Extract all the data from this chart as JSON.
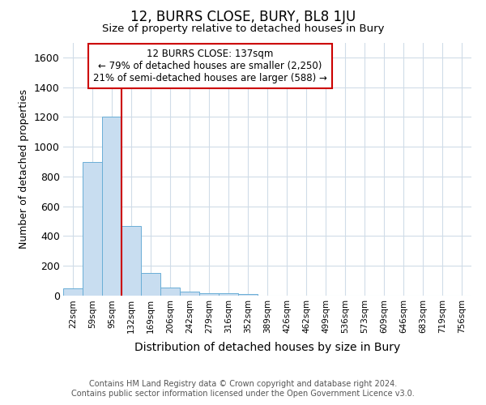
{
  "title": "12, BURRS CLOSE, BURY, BL8 1JU",
  "subtitle": "Size of property relative to detached houses in Bury",
  "xlabel": "Distribution of detached houses by size in Bury",
  "ylabel": "Number of detached properties",
  "footer_line1": "Contains HM Land Registry data © Crown copyright and database right 2024.",
  "footer_line2": "Contains public sector information licensed under the Open Government Licence v3.0.",
  "bar_color": "#c8ddf0",
  "bar_edge_color": "#6aaed6",
  "annotation_text": "12 BURRS CLOSE: 137sqm\n← 79% of detached houses are smaller (2,250)\n21% of semi-detached houses are larger (588) →",
  "annotation_box_color": "white",
  "annotation_box_edge_color": "#cc0000",
  "vline_color": "#cc0000",
  "bins": [
    "22sqm",
    "59sqm",
    "95sqm",
    "132sqm",
    "169sqm",
    "206sqm",
    "242sqm",
    "279sqm",
    "316sqm",
    "352sqm",
    "389sqm",
    "426sqm",
    "462sqm",
    "499sqm",
    "536sqm",
    "573sqm",
    "609sqm",
    "646sqm",
    "683sqm",
    "719sqm",
    "756sqm"
  ],
  "values": [
    50,
    900,
    1200,
    470,
    150,
    55,
    25,
    15,
    15,
    10,
    0,
    0,
    0,
    0,
    0,
    0,
    0,
    0,
    0,
    0,
    0
  ],
  "ylim": [
    0,
    1700
  ],
  "yticks": [
    0,
    200,
    400,
    600,
    800,
    1000,
    1200,
    1400,
    1600
  ],
  "background_color": "#ffffff",
  "grid_color": "#d0dce8"
}
